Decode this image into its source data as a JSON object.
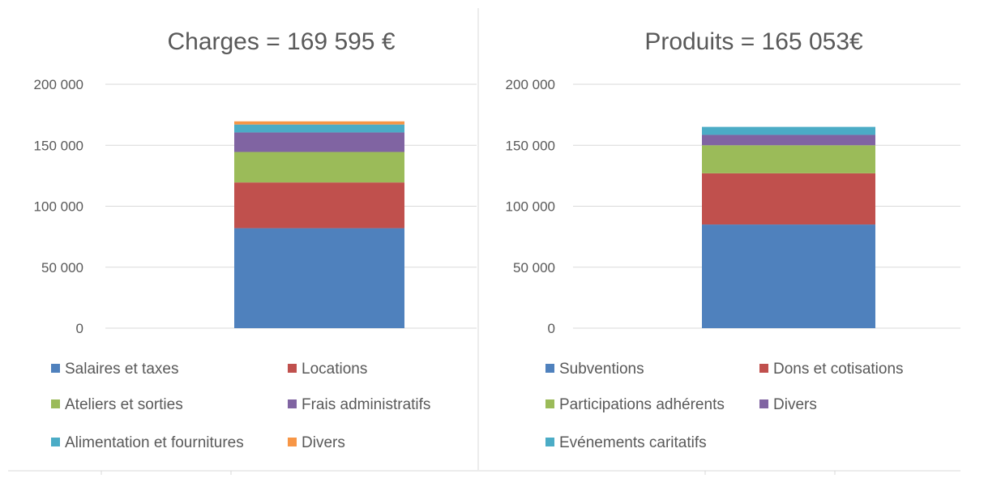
{
  "chart_data": [
    {
      "type": "bar",
      "stacked": true,
      "title": "Charges = 169 595 €",
      "categories": [
        ""
      ],
      "ylim": [
        0,
        200000
      ],
      "yticks": [
        "0",
        "50 000",
        "100 000",
        "150 000",
        "200 000"
      ],
      "ytick_values": [
        0,
        50000,
        100000,
        150000,
        200000
      ],
      "grid": true,
      "legend_position": "bottom",
      "series": [
        {
          "name": "Salaires et taxes",
          "color": "#4f81bd",
          "values": [
            82000
          ]
        },
        {
          "name": "Locations",
          "color": "#c0504d",
          "values": [
            37500
          ]
        },
        {
          "name": "Ateliers et sorties",
          "color": "#9bbb59",
          "values": [
            25000
          ]
        },
        {
          "name": "Frais administratifs",
          "color": "#8064a2",
          "values": [
            16000
          ]
        },
        {
          "name": "Alimentation et fournitures",
          "color": "#4bacc6",
          "values": [
            6500
          ]
        },
        {
          "name": "Divers",
          "color": "#f79646",
          "values": [
            2595
          ]
        }
      ]
    },
    {
      "type": "bar",
      "stacked": true,
      "title": "Produits = 165 053€",
      "categories": [
        ""
      ],
      "ylim": [
        0,
        200000
      ],
      "yticks": [
        "0",
        "50 000",
        "100 000",
        "150 000",
        "200 000"
      ],
      "ytick_values": [
        0,
        50000,
        100000,
        150000,
        200000
      ],
      "grid": true,
      "legend_position": "bottom",
      "series": [
        {
          "name": "Subventions",
          "color": "#4f81bd",
          "values": [
            85000
          ]
        },
        {
          "name": "Dons et cotisations",
          "color": "#c0504d",
          "values": [
            42000
          ]
        },
        {
          "name": "Participations adhérents",
          "color": "#9bbb59",
          "values": [
            23000
          ]
        },
        {
          "name": "Divers",
          "color": "#8064a2",
          "values": [
            8500
          ]
        },
        {
          "name": "Evénements caritatifs",
          "color": "#4bacc6",
          "values": [
            6553
          ]
        }
      ]
    }
  ]
}
